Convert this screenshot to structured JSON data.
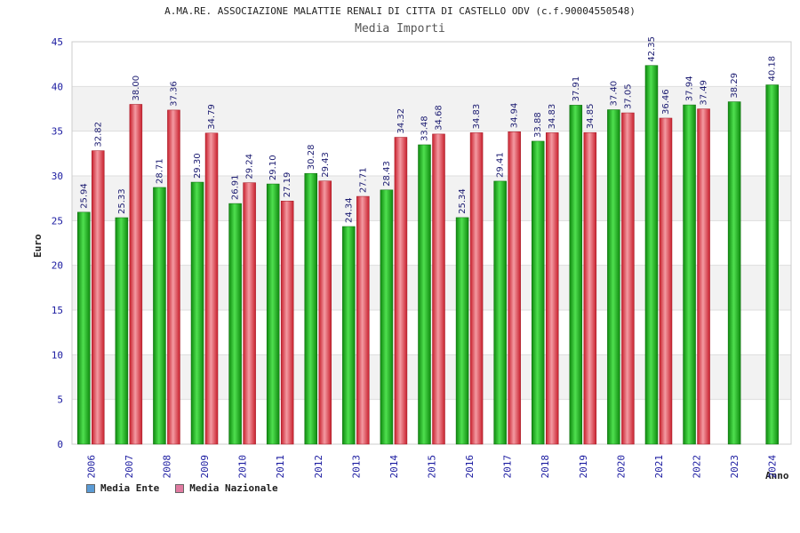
{
  "chart_data": {
    "type": "bar",
    "title": "A.MA.RE. ASSOCIAZIONE MALATTIE RENALI DI CITTA DI CASTELLO ODV (c.f.90004550548)",
    "subtitle": "Media Importi",
    "xlabel": "Anno",
    "ylabel": "Euro",
    "ylim": [
      0,
      45
    ],
    "yticks": [
      0,
      5,
      10,
      15,
      20,
      25,
      30,
      35,
      40,
      45
    ],
    "categories": [
      "2006",
      "2007",
      "2008",
      "2009",
      "2010",
      "2011",
      "2012",
      "2013",
      "2014",
      "2015",
      "2016",
      "2017",
      "2018",
      "2019",
      "2020",
      "2021",
      "2022",
      "2023",
      "2024"
    ],
    "series": [
      {
        "name": "Media Ente",
        "values": [
          25.94,
          25.33,
          28.71,
          29.3,
          26.91,
          29.1,
          30.28,
          24.34,
          28.43,
          33.48,
          25.34,
          29.41,
          33.88,
          37.91,
          37.4,
          42.35,
          37.94,
          38.29,
          40.18
        ],
        "labels": [
          "25.94",
          "25.33",
          "28.71",
          "29.30",
          "26.91",
          "29.10",
          "30.28",
          "24.34",
          "28.43",
          "33.48",
          "25.34",
          "29.41",
          "33.88",
          "37.91",
          "37.40",
          "42.35",
          "37.94",
          "38.29",
          "40.18"
        ]
      },
      {
        "name": "Media Nazionale",
        "values": [
          32.82,
          38.0,
          37.36,
          34.79,
          29.24,
          27.19,
          29.43,
          27.71,
          34.32,
          34.68,
          34.83,
          34.94,
          34.83,
          34.85,
          37.05,
          36.46,
          37.49,
          null,
          null
        ],
        "labels": [
          "32.82",
          "38.00",
          "37.36",
          "34.79",
          "29.24",
          "27.19",
          "29.43",
          "27.71",
          "34.32",
          "34.68",
          "34.83",
          "34.94",
          "34.83",
          "34.85",
          "37.05",
          "36.46",
          "37.49",
          null,
          null
        ]
      }
    ],
    "legend": [
      {
        "label": "Media Ente",
        "color": "#5b9bd5"
      },
      {
        "label": "Media Nazionale",
        "color": "#e07aa0"
      }
    ],
    "colors": {
      "ente": "#1fa51f",
      "nazionale": "#e0434f",
      "grid": "#dddddd",
      "band": "#f2f2f2",
      "tick_text": "#1a1aa0",
      "label_text": "#1a1a70"
    }
  }
}
